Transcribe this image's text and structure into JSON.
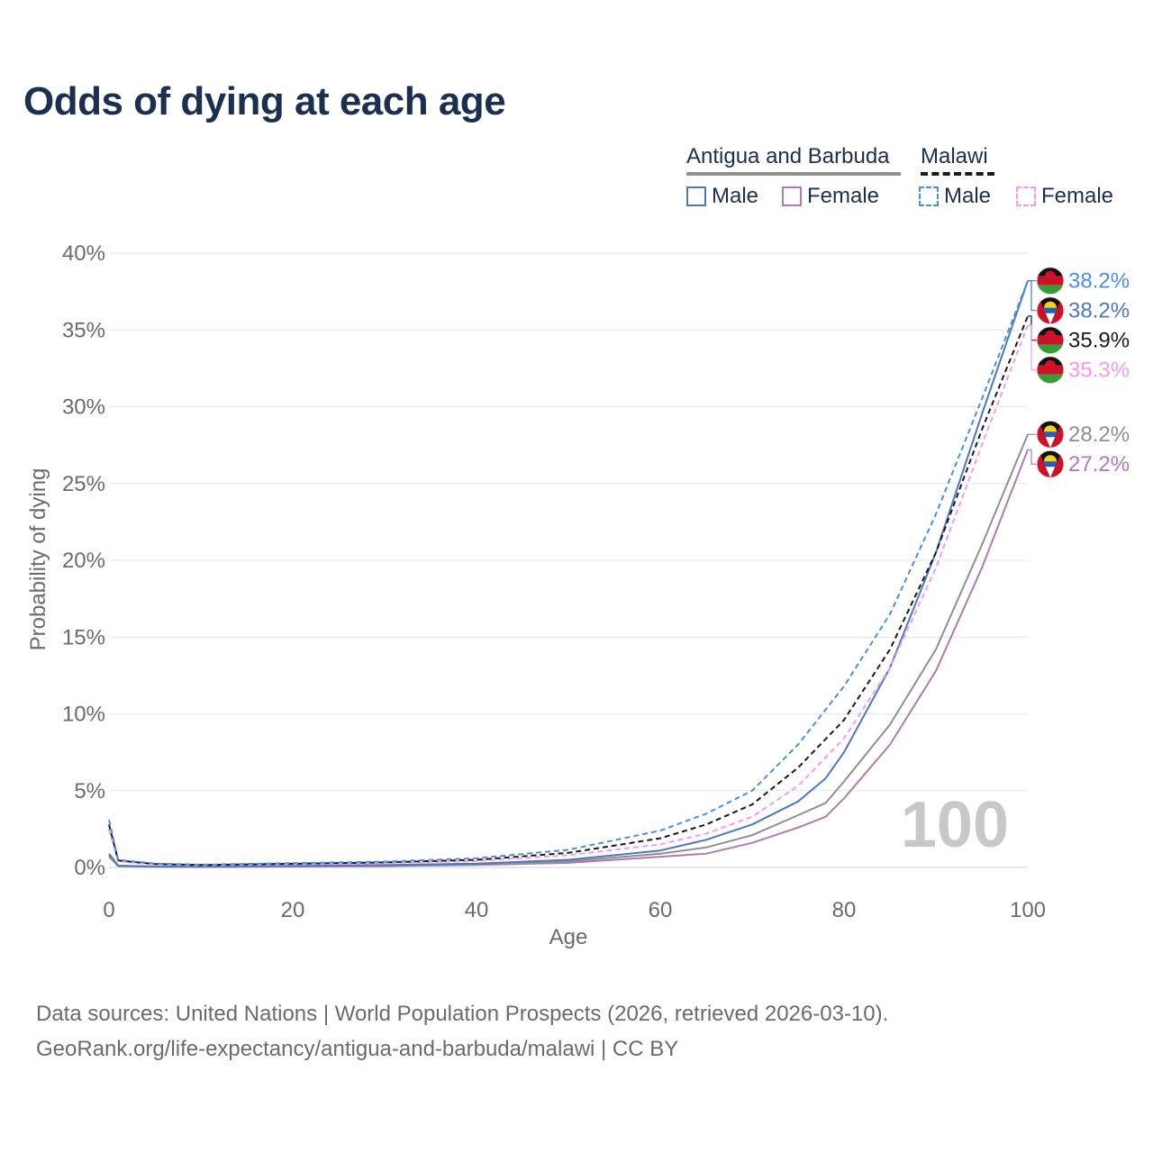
{
  "title": "Odds of dying at each age",
  "legend": {
    "country_a": "Antigua and Barbuda",
    "country_b": "Malawi",
    "male_a": "Male",
    "female_a": "Female",
    "male_b": "Male",
    "female_b": "Female"
  },
  "footer": {
    "line1": "Data sources: United Nations | World Population Prospects (2026, retrieved 2026-03-10).",
    "line2": "GeoRank.org/life-expectancy/antigua-and-barbuda/malawi | CC BY"
  },
  "colors": {
    "ab_male": "#4a79c0",
    "ab_female": "#b07ab2",
    "ab_total": "#8f8f8f",
    "mw_male": "#4a8fe6",
    "mw_female": "#f59af0",
    "mw_total": "#1a1a1a"
  },
  "chart_data": {
    "type": "line",
    "xlabel": "Age",
    "ylabel": "Probability of dying",
    "xlim": [
      0,
      100
    ],
    "ylim": [
      0,
      40
    ],
    "x_ticks": [
      "0",
      "20",
      "40",
      "60",
      "80",
      "100"
    ],
    "y_ticks": [
      "0%",
      "5%",
      "10%",
      "15%",
      "20%",
      "25%",
      "30%",
      "35%",
      "40%"
    ],
    "watermark": "100",
    "series": [
      {
        "name": "Malawi Male",
        "key": "mw_male",
        "dash": true,
        "x": [
          0,
          1,
          5,
          10,
          20,
          30,
          40,
          50,
          60,
          65,
          70,
          75,
          80,
          85,
          90,
          95,
          100
        ],
        "y": [
          3.1,
          0.5,
          0.25,
          0.18,
          0.28,
          0.38,
          0.6,
          1.15,
          2.4,
          3.5,
          5.0,
          8.0,
          11.8,
          16.5,
          23.0,
          30.5,
          38.2
        ],
        "end_label": "38.2%",
        "flag": "malawi"
      },
      {
        "name": "Malawi Total",
        "key": "mw_total",
        "dash": true,
        "x": [
          0,
          1,
          5,
          10,
          20,
          30,
          40,
          50,
          60,
          65,
          70,
          75,
          80,
          85,
          90,
          95,
          100
        ],
        "y": [
          2.8,
          0.45,
          0.22,
          0.16,
          0.24,
          0.33,
          0.5,
          0.95,
          1.9,
          2.8,
          4.1,
          6.5,
          9.6,
          14.2,
          20.5,
          28.5,
          35.9
        ],
        "end_label": "35.9%",
        "flag": "malawi"
      },
      {
        "name": "Malawi Female",
        "key": "mw_female",
        "dash": true,
        "x": [
          0,
          1,
          5,
          10,
          20,
          30,
          40,
          50,
          60,
          65,
          70,
          75,
          80,
          85,
          90,
          95,
          100
        ],
        "y": [
          2.5,
          0.4,
          0.2,
          0.14,
          0.2,
          0.28,
          0.42,
          0.8,
          1.5,
          2.2,
          3.3,
          5.3,
          8.4,
          13.0,
          19.5,
          27.5,
          35.3
        ],
        "end_label": "35.3%",
        "flag": "malawi"
      },
      {
        "name": "Antigua and Barbuda Male",
        "key": "ab_male",
        "dash": false,
        "x": [
          0,
          1,
          5,
          10,
          20,
          30,
          40,
          50,
          60,
          65,
          70,
          75,
          78,
          80,
          85,
          90,
          95,
          100
        ],
        "y": [
          0.9,
          0.12,
          0.06,
          0.05,
          0.1,
          0.15,
          0.25,
          0.5,
          1.1,
          1.8,
          2.8,
          4.3,
          5.8,
          7.5,
          13.0,
          20.5,
          29.5,
          38.2
        ],
        "end_label": "38.2%",
        "flag": "antigua"
      },
      {
        "name": "Antigua and Barbuda Total",
        "key": "ab_total",
        "dash": false,
        "x": [
          0,
          1,
          5,
          10,
          20,
          30,
          40,
          50,
          60,
          65,
          70,
          75,
          78,
          80,
          85,
          90,
          95,
          100
        ],
        "y": [
          0.8,
          0.1,
          0.05,
          0.04,
          0.08,
          0.12,
          0.2,
          0.4,
          0.9,
          1.3,
          2.1,
          3.4,
          4.2,
          5.6,
          9.3,
          14.2,
          21.0,
          28.2
        ],
        "end_label": "28.2%",
        "flag": "antigua"
      },
      {
        "name": "Antigua and Barbuda Female",
        "key": "ab_female",
        "dash": false,
        "x": [
          0,
          1,
          5,
          10,
          20,
          30,
          40,
          50,
          60,
          65,
          70,
          75,
          78,
          80,
          85,
          90,
          95,
          100
        ],
        "y": [
          0.7,
          0.09,
          0.04,
          0.03,
          0.06,
          0.09,
          0.16,
          0.3,
          0.7,
          0.9,
          1.6,
          2.6,
          3.3,
          4.5,
          8.0,
          12.8,
          19.5,
          27.2
        ],
        "end_label": "27.2%",
        "flag": "antigua"
      }
    ]
  }
}
